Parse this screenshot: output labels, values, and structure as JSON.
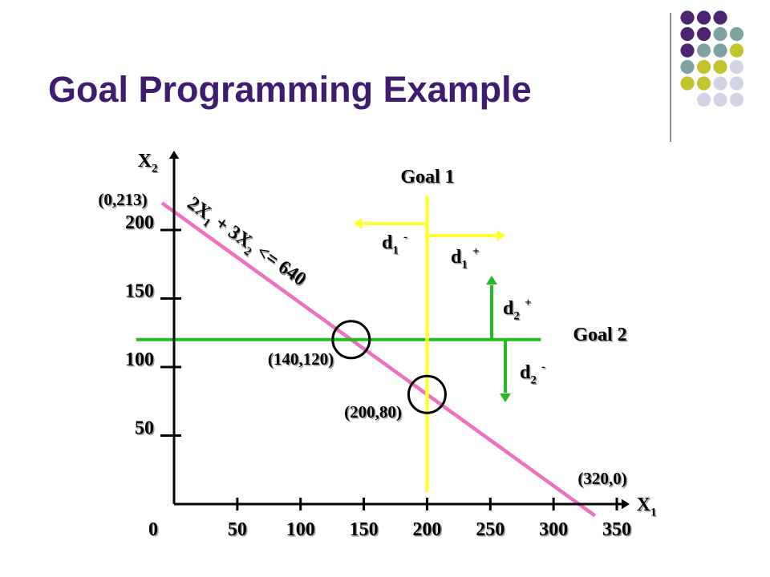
{
  "title": "Goal Programming Example",
  "colors": {
    "title": "#3f1c6f",
    "dot_purple": "#4b2571",
    "dot_teal": "#7fa3a0",
    "dot_olive": "#c2c42e",
    "dot_lavender": "#d3d3e6",
    "constraint_line": "#ef6fc0",
    "goal1_line": "#ffff33",
    "goal2_line": "#22bb22",
    "axis": "#000000"
  },
  "decoration": {
    "dot_rows": [
      [
        "purple",
        "purple",
        "purple"
      ],
      [
        "purple",
        "purple",
        "teal",
        "teal"
      ],
      [
        "purple",
        "teal",
        "teal",
        "olive"
      ],
      [
        "teal",
        "olive",
        "olive",
        "lavender"
      ],
      [
        "olive",
        "olive",
        "lavender",
        "lavender"
      ],
      [
        "lavender",
        "lavender",
        "lavender"
      ]
    ]
  },
  "chart_data": {
    "type": "line",
    "title": "",
    "x_axis": {
      "label": "X",
      "label_subscript": "1",
      "range": [
        0,
        350
      ],
      "ticks": [
        0,
        50,
        100,
        150,
        200,
        250,
        300,
        350
      ],
      "tick_labels": [
        "0",
        "50",
        "100",
        "150",
        "200",
        "250",
        "300",
        "350"
      ]
    },
    "y_axis": {
      "label": "X",
      "label_subscript": "2",
      "range": [
        0,
        230
      ],
      "ticks": [
        50,
        100,
        150,
        200
      ],
      "tick_labels": [
        "50",
        "100",
        "150",
        "200"
      ]
    },
    "grid": false,
    "constraint": {
      "label_parts": [
        "2X",
        "1",
        " + 3X",
        "2",
        " <= 640"
      ],
      "points": [
        [
          0,
          213.33
        ],
        [
          320,
          0
        ]
      ]
    },
    "goal1": {
      "label": "Goal 1",
      "x": 200,
      "y_range": [
        0,
        225
      ],
      "deviation_under": {
        "name": "d",
        "sub": "1",
        "sup": "-"
      },
      "deviation_over": {
        "name": "d",
        "sub": "1",
        "sup": "+"
      }
    },
    "goal2": {
      "label": "Goal 2",
      "y": 120,
      "x_range": [
        -30,
        290
      ],
      "deviation_over": {
        "name": "d",
        "sub": "2",
        "sup": "+"
      },
      "deviation_under": {
        "name": "d",
        "sub": "2",
        "sup": "-"
      }
    },
    "annotations": [
      {
        "label": "(0,213)",
        "x": 0,
        "y": 213
      },
      {
        "label": "(140,120)",
        "x": 140,
        "y": 120
      },
      {
        "label": "(200,80)",
        "x": 200,
        "y": 80
      },
      {
        "label": "(320,0)",
        "x": 320,
        "y": 0
      }
    ],
    "circled_points": [
      [
        140,
        120
      ],
      [
        200,
        80
      ]
    ]
  }
}
